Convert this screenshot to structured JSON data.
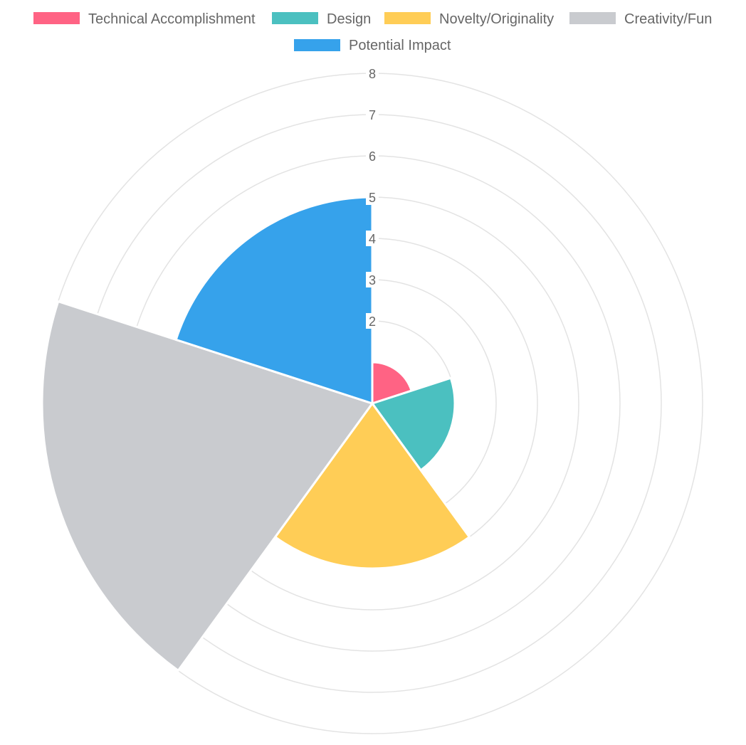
{
  "chart_data": {
    "type": "polarArea",
    "categories": [
      "Technical Accomplishment",
      "Design",
      "Novelty/Originality",
      "Creativity/Fun",
      "Potential Impact"
    ],
    "values": [
      1,
      2,
      4,
      8,
      5
    ],
    "colors": [
      "#ff6384",
      "#4bc0c0",
      "#ffcd56",
      "#c9cbcf",
      "#36a2eb"
    ],
    "r_ticks": [
      "",
      "2",
      "3",
      "4",
      "5",
      "6",
      "7",
      "8"
    ],
    "r_range": [
      0,
      8
    ],
    "grid": true,
    "legend_position": "top"
  }
}
